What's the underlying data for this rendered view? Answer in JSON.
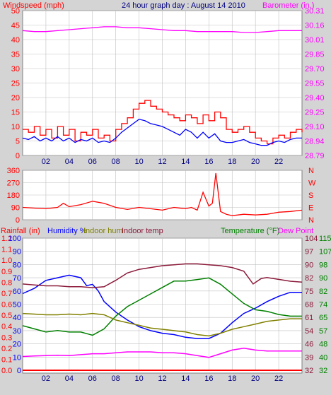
{
  "header": {
    "left": "Windspeed (mph)",
    "center": "24 hour graph day : August 14 2010",
    "right": "Barometer (in.)"
  },
  "colors": {
    "bg": "#d4d4d4",
    "plot": "#ffffff",
    "red": "#ff0000",
    "blue": "#0000ff",
    "magenta": "#ff00ff",
    "green": "#008000",
    "olive": "#808000",
    "maroon": "#8b1a3a",
    "navy": "#000080"
  },
  "chart_data": [
    {
      "type": "line",
      "x_ticks": [
        "02",
        "04",
        "06",
        "08",
        "10",
        "12",
        "14",
        "16",
        "18",
        "20",
        "22"
      ],
      "x_range": [
        0,
        24
      ],
      "left_axis": {
        "ticks": [
          "0",
          "5",
          "10",
          "15",
          "20",
          "25",
          "30",
          "35",
          "40",
          "45",
          "50"
        ],
        "ylim": [
          0,
          50
        ]
      },
      "right_axis": {
        "ticks": [
          "28.79",
          "28.94",
          "29.10",
          "29.25",
          "29.40",
          "29.55",
          "29.70",
          "29.85",
          "30.01",
          "30.16",
          "30.31"
        ],
        "ylim": [
          28.79,
          30.31
        ]
      },
      "series": [
        {
          "name": "Windspeed (mph)",
          "role": "gust",
          "color": "#ff0000",
          "axis": "left",
          "step": true,
          "x": [
            0,
            0.5,
            1,
            1.5,
            2,
            2.5,
            3,
            3.5,
            4,
            4.5,
            5,
            5.5,
            6,
            6.5,
            7,
            7.5,
            8,
            8.5,
            9,
            9.5,
            10,
            10.5,
            11,
            11.5,
            12,
            12.5,
            13,
            13.5,
            14,
            14.5,
            15,
            15.5,
            16,
            16.5,
            17,
            17.5,
            18,
            18.5,
            19,
            19.5,
            20,
            20.5,
            21,
            21.5,
            22,
            22.5,
            23,
            23.5,
            24
          ],
          "y": [
            9,
            8,
            10,
            7,
            9,
            6,
            10,
            7,
            9,
            5,
            8,
            7,
            9,
            6,
            7,
            5,
            9,
            11,
            13,
            16,
            18,
            19,
            17,
            16,
            15,
            14,
            13,
            12,
            14,
            13,
            11,
            14,
            12,
            15,
            13,
            9,
            8,
            9,
            10,
            8,
            6,
            5,
            4,
            6,
            7,
            6,
            8,
            9,
            8
          ]
        },
        {
          "name": "Windspeed avg",
          "role": "average",
          "color": "#0000ff",
          "axis": "left",
          "x": [
            0,
            0.5,
            1,
            1.5,
            2,
            2.5,
            3,
            3.5,
            4,
            4.5,
            5,
            5.5,
            6,
            6.5,
            7,
            7.5,
            8,
            8.5,
            9,
            9.5,
            10,
            10.5,
            11,
            11.5,
            12,
            12.5,
            13,
            13.5,
            14,
            14.5,
            15,
            15.5,
            16,
            16.5,
            17,
            17.5,
            18,
            18.5,
            19,
            19.5,
            20,
            20.5,
            21,
            21.5,
            22,
            22.5,
            23,
            23.5,
            24
          ],
          "y": [
            6,
            5.5,
            6.5,
            5,
            6,
            5,
            6.5,
            5,
            6,
            4.5,
            5.5,
            5,
            6,
            4.5,
            5,
            4.5,
            6,
            8,
            9.5,
            11,
            12.5,
            12,
            11,
            10.5,
            10,
            9,
            8,
            7,
            9,
            8,
            6,
            8,
            6,
            7.5,
            5,
            4.5,
            4.5,
            5,
            5.5,
            4.5,
            4,
            3.5,
            3.5,
            4.5,
            5,
            4.5,
            5.5,
            6,
            6
          ]
        },
        {
          "name": "Barometer (in.)",
          "color": "#ff00ff",
          "axis": "right",
          "x": [
            0,
            1,
            2,
            3,
            4,
            5,
            6,
            7,
            8,
            9,
            10,
            11,
            12,
            13,
            14,
            15,
            16,
            17,
            18,
            19,
            20,
            21,
            22,
            23,
            24
          ],
          "y": [
            30.1,
            30.09,
            30.09,
            30.1,
            30.11,
            30.12,
            30.13,
            30.14,
            30.14,
            30.13,
            30.13,
            30.12,
            30.11,
            30.1,
            30.1,
            30.09,
            30.09,
            30.09,
            30.09,
            30.08,
            30.08,
            30.09,
            30.1,
            30.1,
            30.1
          ]
        }
      ]
    },
    {
      "type": "line",
      "x_range": [
        0,
        24
      ],
      "left_axis": {
        "ticks": [
          "0",
          "90",
          "180",
          "270",
          "360"
        ],
        "ylim": [
          0,
          360
        ]
      },
      "right_axis": {
        "ticks": [
          "N",
          "E",
          "S",
          "W",
          "N"
        ]
      },
      "series": [
        {
          "name": "Wind direction",
          "color": "#ff0000",
          "x": [
            0,
            1,
            2,
            3,
            3.5,
            4,
            5,
            6,
            7,
            8,
            9,
            10,
            11,
            12,
            13,
            14,
            14.5,
            15,
            15.5,
            16,
            16.3,
            16.6,
            17,
            17.5,
            18,
            19,
            20,
            21,
            22,
            23,
            24
          ],
          "y": [
            90,
            85,
            80,
            90,
            120,
            95,
            110,
            135,
            120,
            90,
            75,
            90,
            80,
            70,
            90,
            80,
            90,
            70,
            200,
            100,
            120,
            340,
            60,
            40,
            30,
            40,
            35,
            40,
            55,
            60,
            70
          ]
        }
      ]
    },
    {
      "type": "line",
      "x_range": [
        0,
        24
      ],
      "left_axes": [
        {
          "name": "Rainfall (in)",
          "color": "#ff0000",
          "ticks": [
            "0.0",
            "0.1",
            "0.2",
            "0.3",
            "0.4",
            "0.5",
            "0.6",
            "0.7",
            "0.8",
            "0.9",
            "1.0",
            "1.1",
            "1.2"
          ],
          "ylim": [
            0,
            1.2
          ]
        },
        {
          "name": "Humidity %",
          "color": "#0000ff",
          "ticks": [
            "0",
            "10",
            "20",
            "30",
            "40",
            "50",
            "60",
            "70",
            "80",
            "90",
            "100"
          ],
          "ylim": [
            0,
            100
          ]
        }
      ],
      "right_axes": [
        {
          "name": "Temperature (°F)",
          "color": "#8b1a3a",
          "ticks": [
            "32",
            "39",
            "46",
            "54",
            "61",
            "68",
            "75",
            "82",
            "90",
            "97",
            "104"
          ],
          "ylim": [
            32,
            104
          ]
        },
        {
          "name": "Dew Point",
          "color": "#008000",
          "ticks": [
            "32",
            "40",
            "48",
            "57",
            "65",
            "74",
            "82",
            "90",
            "98",
            "107",
            "115"
          ],
          "ylim": [
            32,
            115
          ]
        }
      ],
      "legend": [
        "Rainfall (in)",
        "Humidity %",
        "Indoor hum",
        "Indoor temp",
        "Temperature (°F)",
        "Dew Point"
      ],
      "series": [
        {
          "name": "Humidity %",
          "color": "#0000ff",
          "axis": "humidity",
          "x": [
            0,
            1,
            2,
            3,
            4,
            5,
            5.5,
            6,
            6.5,
            7,
            8,
            9,
            10,
            11,
            12,
            13,
            14,
            15,
            16,
            17,
            18,
            19,
            20,
            21,
            22,
            23,
            24
          ],
          "y": [
            58,
            62,
            68,
            70,
            72,
            70,
            64,
            65,
            60,
            52,
            44,
            38,
            33,
            30,
            28,
            27,
            25,
            24,
            24,
            28,
            36,
            43,
            47,
            52,
            56,
            59,
            59
          ]
        },
        {
          "name": "Indoor temp",
          "color": "#8b1a3a",
          "axis": "temperature",
          "x": [
            0,
            1,
            2,
            3,
            4,
            5,
            6,
            7,
            8,
            9,
            10,
            11,
            12,
            13,
            14,
            15,
            16,
            17,
            18,
            19,
            19.8,
            20.5,
            21,
            22,
            23,
            24
          ],
          "y": [
            79,
            78.5,
            78,
            78,
            77.5,
            77.5,
            77,
            77.5,
            81,
            85,
            87,
            88,
            89,
            89.5,
            90,
            90,
            89.5,
            89,
            88,
            86,
            79,
            82,
            82.5,
            81.5,
            80.5,
            80
          ]
        },
        {
          "name": "Dew Point",
          "color": "#008000",
          "axis": "dewpoint",
          "x": [
            0,
            1,
            2,
            3,
            4,
            5,
            6,
            7,
            8,
            9,
            10,
            11,
            12,
            13,
            14,
            15,
            16,
            17,
            18,
            19,
            20,
            21,
            22,
            23,
            24
          ],
          "y": [
            60,
            58,
            56,
            57,
            56,
            56,
            54,
            58,
            66,
            72,
            76,
            80,
            84,
            88,
            88,
            89,
            90,
            86,
            80,
            74,
            70,
            69,
            67,
            66,
            66
          ]
        },
        {
          "name": "Indoor hum",
          "color": "#808000",
          "axis": "humidity",
          "x": [
            0,
            1,
            2,
            3,
            4,
            5,
            6,
            7,
            8,
            9,
            10,
            11,
            12,
            13,
            14,
            15,
            16,
            17,
            18,
            19,
            20,
            21,
            22,
            23,
            24
          ],
          "y": [
            43,
            42.5,
            42,
            42,
            42.5,
            42,
            43,
            42,
            38,
            36,
            34,
            32,
            31,
            30,
            29,
            27,
            26,
            28,
            31,
            33,
            35,
            37,
            38,
            39,
            39
          ]
        },
        {
          "name": "Temperature (°F)",
          "color": "#ff00ff",
          "axis": "temperature",
          "x": [
            0,
            1,
            2,
            3,
            4,
            5,
            6,
            7,
            8,
            9,
            10,
            11,
            12,
            13,
            14,
            15,
            16,
            17,
            18,
            19,
            20,
            21,
            22,
            23,
            24
          ],
          "y": [
            39.5,
            39.8,
            40,
            40.2,
            40,
            40.5,
            41,
            41,
            41.5,
            42,
            42,
            42,
            41.5,
            41.5,
            41,
            40,
            39,
            41,
            43,
            44,
            43,
            42.5,
            42.5,
            42.5,
            42.5
          ]
        },
        {
          "name": "Rainfall (in)",
          "color": "#ff0000",
          "axis": "rain",
          "x": [
            0,
            24
          ],
          "y": [
            0,
            0
          ]
        }
      ]
    }
  ]
}
